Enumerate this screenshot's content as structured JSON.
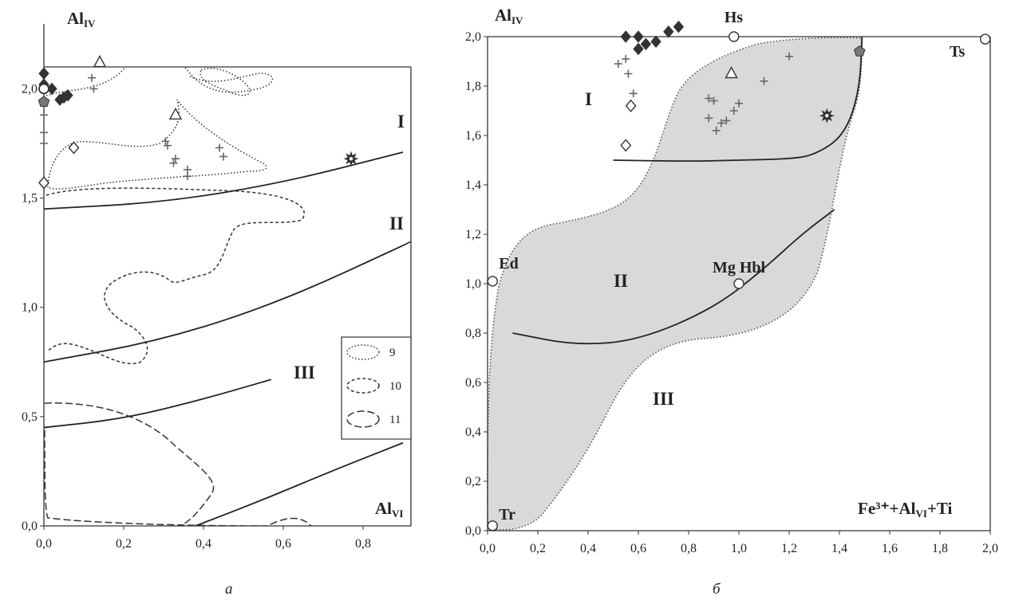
{
  "chart_data": [
    {
      "panel_label": "а",
      "type": "scatter",
      "ylabel": "Al",
      "ylabel_sub": "IV",
      "xlabel": "Al",
      "xlabel_sub": "VI",
      "xlim": [
        0,
        0.9
      ],
      "ylim": [
        0,
        2.1
      ],
      "x_ticks": [
        "0,0",
        "0,2",
        "0,4",
        "0,6",
        "0,8"
      ],
      "y_ticks": [
        "0,0",
        "0,5",
        "1,0",
        "1,5",
        "2,0"
      ],
      "zones": [
        "I",
        "II",
        "III"
      ],
      "legend": {
        "position": "right",
        "entries": [
          "9",
          "10",
          "11"
        ]
      },
      "boundary_lines": [
        [
          [
            0,
            1.45
          ],
          [
            0.3,
            1.48
          ],
          [
            0.6,
            1.57
          ],
          [
            0.9,
            1.71
          ]
        ],
        [
          [
            0,
            0.75
          ],
          [
            0.3,
            0.85
          ],
          [
            0.6,
            1.03
          ],
          [
            0.92,
            1.3
          ]
        ],
        [
          [
            0,
            0.45
          ],
          [
            0.2,
            0.49
          ],
          [
            0.4,
            0.58
          ],
          [
            0.57,
            0.67
          ]
        ],
        [
          [
            0.38,
            0
          ],
          [
            0.55,
            0.12
          ],
          [
            0.72,
            0.25
          ],
          [
            0.9,
            0.38
          ]
        ]
      ],
      "series": [
        {
          "marker": "filled-diamond",
          "points": [
            [
              0.0,
              2.07
            ],
            [
              0.0,
              2.02
            ],
            [
              0.02,
              2.0
            ],
            [
              0.04,
              1.95
            ],
            [
              0.05,
              1.96
            ],
            [
              0.06,
              1.97
            ]
          ]
        },
        {
          "marker": "open-circle",
          "points": [
            [
              0.0,
              2.0
            ]
          ]
        },
        {
          "marker": "filled-pentagon",
          "points": [
            [
              0.0,
              1.94
            ]
          ]
        },
        {
          "marker": "plus",
          "points": [
            [
              0.0,
              1.88
            ],
            [
              0.0,
              1.8
            ],
            [
              0.0,
              1.75
            ],
            [
              0.12,
              2.05
            ],
            [
              0.125,
              2.0
            ],
            [
              0.305,
              1.76
            ],
            [
              0.31,
              1.74
            ],
            [
              0.325,
              1.66
            ],
            [
              0.33,
              1.68
            ],
            [
              0.36,
              1.63
            ],
            [
              0.36,
              1.6
            ],
            [
              0.44,
              1.73
            ],
            [
              0.45,
              1.69
            ]
          ]
        },
        {
          "marker": "open-diamond",
          "points": [
            [
              0.0,
              1.57
            ],
            [
              0.075,
              1.73
            ]
          ]
        },
        {
          "marker": "open-triangle",
          "points": [
            [
              0.14,
              2.12
            ],
            [
              0.33,
              1.88
            ]
          ]
        },
        {
          "marker": "star",
          "points": [
            [
              0.77,
              1.68
            ]
          ]
        }
      ]
    },
    {
      "panel_label": "б",
      "type": "scatter",
      "ylabel": "Al",
      "ylabel_sub": "IV",
      "xlabel": "Fe³⁺+Al",
      "xlabel_sub": "VI",
      "xlabel_suffix": "+Ti",
      "xlim": [
        0,
        2.0
      ],
      "ylim": [
        0,
        2.0
      ],
      "x_ticks": [
        "0,0",
        "0,2",
        "0,4",
        "0,6",
        "0,8",
        "1,0",
        "1,2",
        "1,4",
        "1,6",
        "1,8",
        "2,0"
      ],
      "y_ticks": [
        "0,0",
        "0,2",
        "0,4",
        "0,6",
        "0,8",
        "1,0",
        "1,2",
        "1,4",
        "1,6",
        "1,8",
        "2,0"
      ],
      "zones": [
        "I",
        "II",
        "III"
      ],
      "end_members": [
        {
          "name": "Hs",
          "x": 0.98,
          "y": 2.0
        },
        {
          "name": "Ts",
          "x": 1.98,
          "y": 1.99
        },
        {
          "name": "Ed",
          "x": 0.02,
          "y": 1.01
        },
        {
          "name": "Mg Hbl",
          "x": 1.0,
          "y": 1.0
        },
        {
          "name": "Tr",
          "x": 0.02,
          "y": 0.02
        }
      ],
      "boundary_lines": [
        [
          [
            0.1,
            0.8
          ],
          [
            0.35,
            0.75
          ],
          [
            0.6,
            0.77
          ],
          [
            0.9,
            0.9
          ],
          [
            1.1,
            1.06
          ],
          [
            1.25,
            1.2
          ],
          [
            1.38,
            1.3
          ]
        ],
        [
          [
            0.5,
            1.5
          ],
          [
            0.8,
            1.495
          ],
          [
            1.0,
            1.5
          ],
          [
            1.2,
            1.505
          ],
          [
            1.3,
            1.52
          ],
          [
            1.42,
            1.6
          ],
          [
            1.48,
            1.78
          ],
          [
            1.49,
            2.0
          ]
        ]
      ],
      "series": [
        {
          "marker": "filled-diamond",
          "points": [
            [
              0.55,
              2.0
            ],
            [
              0.6,
              2.0
            ],
            [
              0.6,
              1.95
            ],
            [
              0.63,
              1.97
            ],
            [
              0.67,
              1.98
            ],
            [
              0.72,
              2.02
            ],
            [
              0.76,
              2.04
            ]
          ]
        },
        {
          "marker": "plus",
          "points": [
            [
              0.52,
              1.89
            ],
            [
              0.55,
              1.91
            ],
            [
              0.56,
              1.85
            ],
            [
              0.58,
              1.77
            ],
            [
              0.88,
              1.75
            ],
            [
              0.9,
              1.74
            ],
            [
              0.88,
              1.67
            ],
            [
              0.91,
              1.62
            ],
            [
              0.93,
              1.65
            ],
            [
              0.95,
              1.66
            ],
            [
              0.98,
              1.7
            ],
            [
              1.0,
              1.73
            ],
            [
              1.1,
              1.82
            ],
            [
              1.2,
              1.92
            ]
          ]
        },
        {
          "marker": "open-diamond",
          "points": [
            [
              0.55,
              1.56
            ],
            [
              0.57,
              1.72
            ]
          ]
        },
        {
          "marker": "open-triangle",
          "points": [
            [
              0.97,
              1.85
            ]
          ]
        },
        {
          "marker": "star",
          "points": [
            [
              1.35,
              1.68
            ]
          ]
        },
        {
          "marker": "filled-pentagon",
          "points": [
            [
              1.48,
              1.94
            ]
          ]
        }
      ]
    }
  ]
}
